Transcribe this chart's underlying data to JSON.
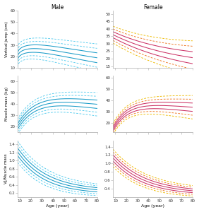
{
  "title_male": "Male",
  "title_female": "Female",
  "xlabel": "Age (year)",
  "ylabel_vj": "Vertical jump (cm)",
  "ylabel_mm": "Muscle mass (kg)",
  "ylabel_vjmm": "VJ/Muscle mass",
  "male_color_solid": "#1a9cc8",
  "male_color_dashed": "#55ccee",
  "female_color_solid": "#cc3366",
  "female_color_dashed1": "#ee7722",
  "female_color_dashed2": "#eebb00",
  "ylims_male_vj": [
    10,
    60
  ],
  "ylims_female_vj": [
    14,
    52
  ],
  "ylims_male_mm": [
    15,
    65
  ],
  "ylims_female_mm": [
    12,
    62
  ],
  "ylims_male_vjmm": [
    0.1,
    1.5
  ],
  "ylims_female_vjmm": [
    0.2,
    1.55
  ],
  "yticks_male_vj": [
    10,
    20,
    30,
    40,
    50,
    60
  ],
  "yticks_female_vj": [
    15,
    20,
    25,
    30,
    35,
    40,
    45,
    50
  ],
  "yticks_male_mm": [
    20,
    30,
    40,
    50,
    60
  ],
  "yticks_female_mm": [
    20,
    30,
    40,
    50,
    60
  ],
  "yticks_male_vjmm": [
    0.2,
    0.4,
    0.6,
    0.8,
    1.0,
    1.2,
    1.4
  ],
  "yticks_female_vjmm": [
    0.4,
    0.6,
    0.8,
    1.0,
    1.2,
    1.4
  ],
  "xticks": [
    10,
    20,
    30,
    40,
    50,
    60,
    70,
    80
  ],
  "age_start": 8,
  "age_end": 80
}
